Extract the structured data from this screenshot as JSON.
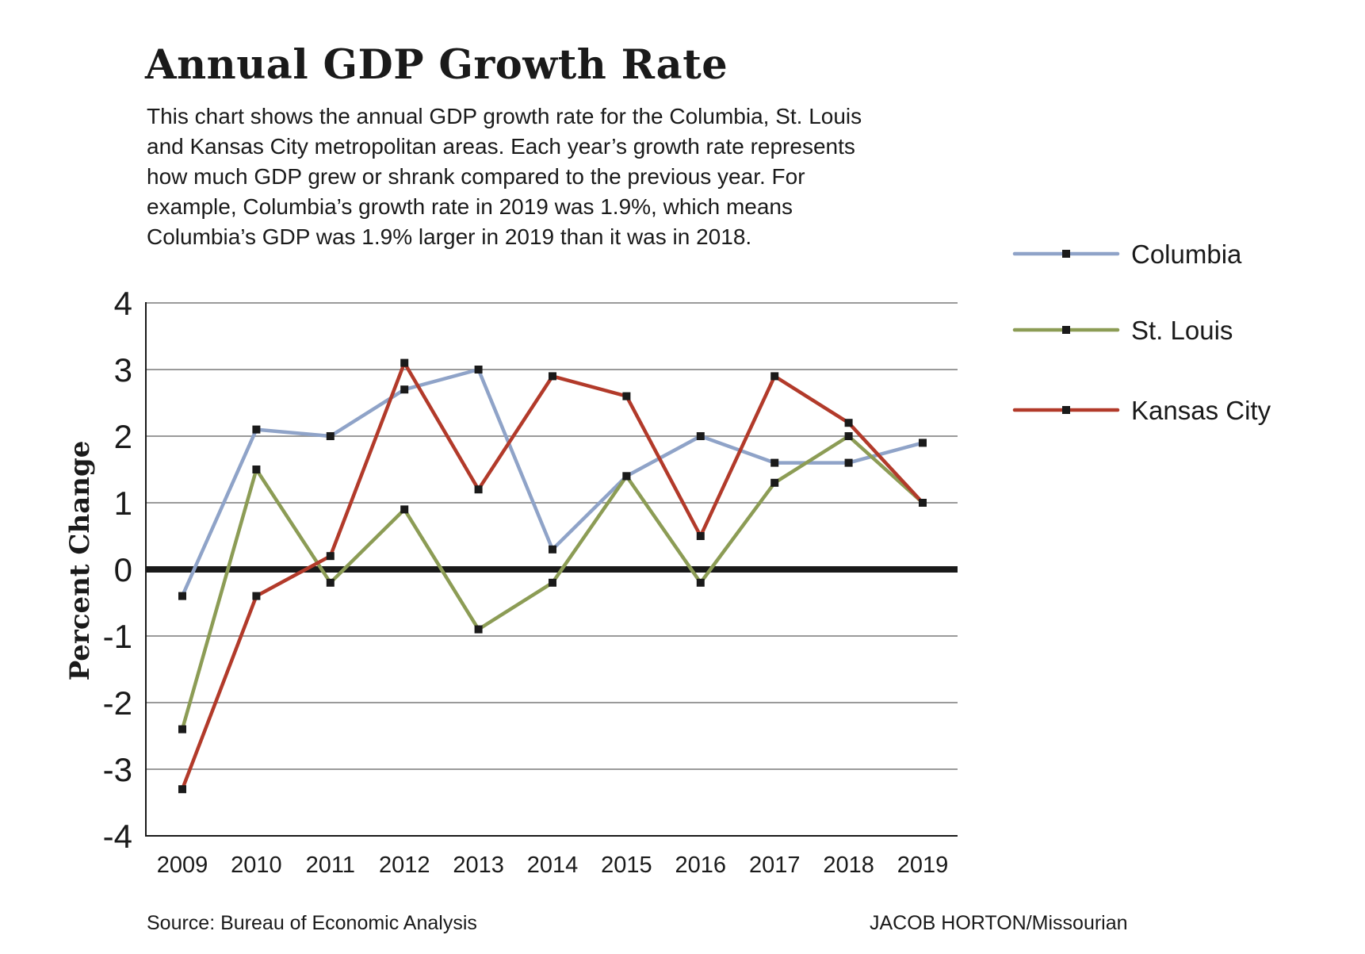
{
  "header": {
    "title": "Annual GDP Growth Rate",
    "description": [
      "This chart shows the annual GDP growth rate for the Columbia, St. Louis",
      "and Kansas City metropolitan areas. Each year’s growth rate represents",
      "how much GDP grew or shrank compared to the previous year. For",
      "example, Columbia’s growth rate in 2019 was 1.9%, which means",
      "Columbia’s GDP was 1.9% larger in 2019 than it was in 2018."
    ]
  },
  "footer": {
    "source": "Source: Bureau of Economic Analysis",
    "credit": "JACOB HORTON/Missourian"
  },
  "chart_data": {
    "type": "line",
    "title": "Annual GDP Growth Rate",
    "xlabel": "",
    "ylabel": "Percent Change",
    "categories": [
      "2009",
      "2010",
      "2011",
      "2012",
      "2013",
      "2014",
      "2015",
      "2016",
      "2017",
      "2018",
      "2019"
    ],
    "ylim": [
      -4,
      4
    ],
    "yticks": [
      4,
      3,
      2,
      1,
      0,
      -1,
      -2,
      -3,
      -4
    ],
    "grid": true,
    "legend_position": "right",
    "series": [
      {
        "name": "Columbia",
        "color": "#8fa3c8",
        "values": [
          -0.4,
          2.1,
          2.0,
          2.7,
          3.0,
          0.3,
          1.4,
          2.0,
          1.6,
          1.6,
          1.9
        ]
      },
      {
        "name": "St. Louis",
        "color": "#8c9c55",
        "values": [
          -2.4,
          1.5,
          -0.2,
          0.9,
          -0.9,
          -0.2,
          1.4,
          -0.2,
          1.3,
          2.0,
          1.0
        ]
      },
      {
        "name": "Kansas City",
        "color": "#b23a2a",
        "values": [
          -3.3,
          -0.4,
          0.2,
          3.1,
          1.2,
          2.9,
          2.6,
          0.5,
          2.9,
          2.2,
          1.0
        ]
      }
    ],
    "marker_color": "#1a1a1a",
    "gridline_color": "#9a9a9a",
    "zero_line_color": "#1a1a1a"
  }
}
